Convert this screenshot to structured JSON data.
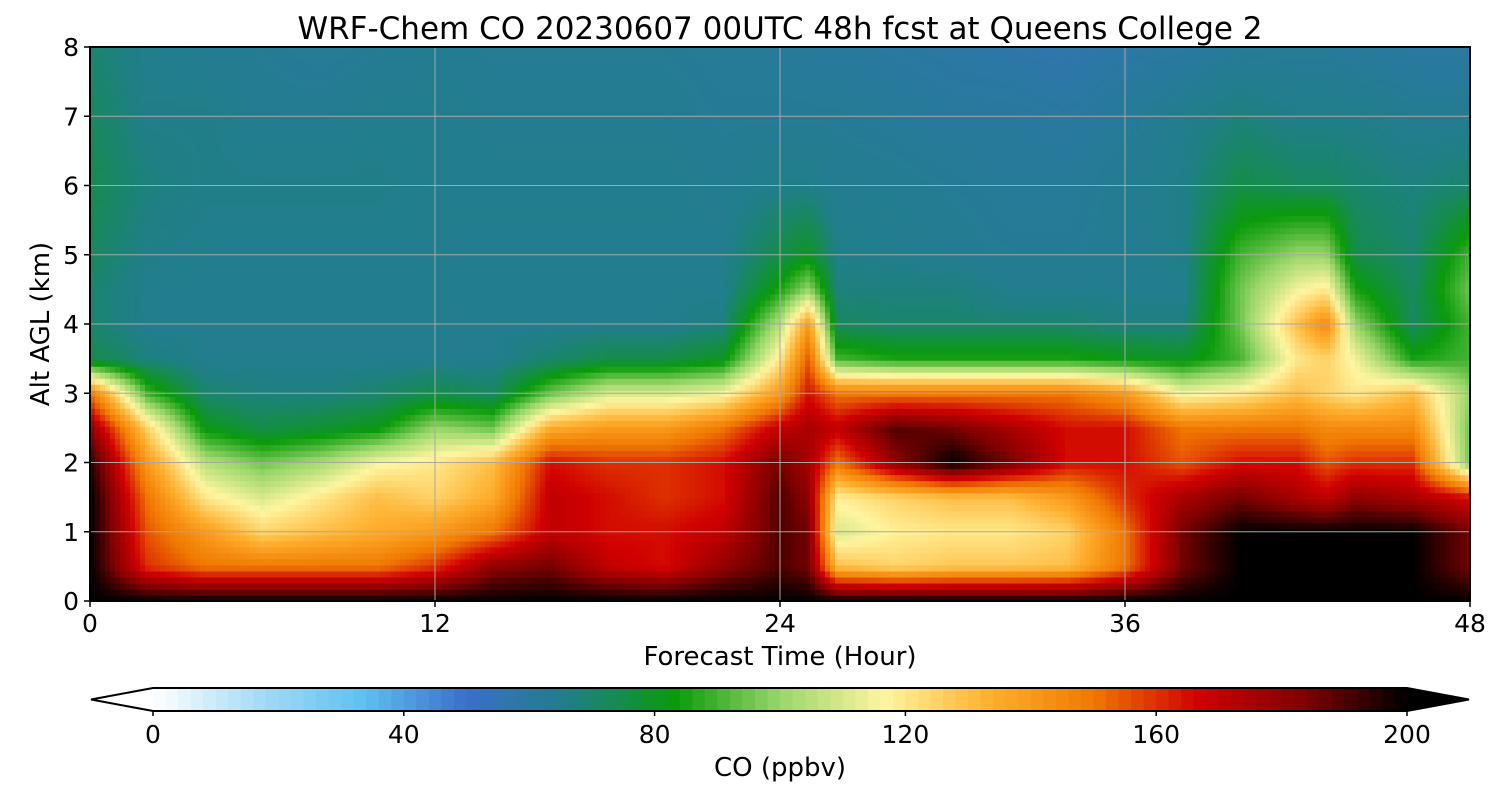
{
  "chart_data": {
    "type": "heatmap",
    "title": "WRF-Chem CO  20230607 00UTC 48h fcst at Queens College 2",
    "xlabel": "Forecast Time (Hour)",
    "ylabel": "Alt AGL (km)",
    "xlim": [
      0,
      48
    ],
    "ylim": [
      0,
      8
    ],
    "x_ticks": [
      "0",
      "12",
      "24",
      "36",
      "48"
    ],
    "y_ticks": [
      "0",
      "1",
      "2",
      "3",
      "4",
      "5",
      "6",
      "7",
      "8"
    ],
    "grid": true,
    "colorbar": {
      "label": "CO  (ppbv)",
      "range": [
        0,
        200
      ],
      "ticks": [
        "0",
        "40",
        "80",
        "120",
        "160",
        "200"
      ],
      "extend": "both",
      "colors": [
        "#ffffff",
        "#a6dcf7",
        "#5fc1f1",
        "#3a6fc9",
        "#1f7f86",
        "#0a9b0a",
        "#9ad66a",
        "#fff5a0",
        "#ffb030",
        "#f07800",
        "#d00000",
        "#800000",
        "#000000"
      ]
    },
    "x": [
      0,
      2,
      4,
      6,
      8,
      10,
      12,
      14,
      16,
      18,
      20,
      22,
      24,
      25,
      26,
      28,
      30,
      32,
      34,
      36,
      38,
      40,
      42,
      43,
      44,
      46,
      48
    ],
    "y": [
      0,
      0.5,
      1,
      1.5,
      2,
      2.5,
      3,
      3.5,
      4,
      4.5,
      5,
      6,
      7,
      8
    ],
    "values": [
      [
        200,
        200,
        200,
        200,
        200,
        200,
        200,
        200,
        200,
        200,
        200,
        200,
        200,
        200,
        200,
        200,
        200,
        200,
        200,
        200,
        200,
        200,
        200,
        200,
        200,
        200,
        200
      ],
      [
        200,
        160,
        150,
        150,
        150,
        150,
        160,
        180,
        185,
        170,
        165,
        180,
        190,
        185,
        130,
        125,
        128,
        128,
        130,
        150,
        185,
        200,
        200,
        200,
        200,
        200,
        185
      ],
      [
        200,
        155,
        140,
        125,
        130,
        135,
        140,
        150,
        170,
        165,
        165,
        170,
        190,
        185,
        110,
        118,
        120,
        120,
        125,
        150,
        185,
        200,
        200,
        200,
        200,
        200,
        185
      ],
      [
        200,
        150,
        120,
        110,
        120,
        130,
        125,
        135,
        170,
        165,
        160,
        165,
        190,
        180,
        118,
        125,
        130,
        130,
        140,
        160,
        175,
        185,
        175,
        170,
        180,
        175,
        165
      ],
      [
        195,
        140,
        105,
        95,
        102,
        115,
        120,
        130,
        165,
        160,
        160,
        165,
        185,
        175,
        150,
        180,
        200,
        185,
        165,
        165,
        155,
        165,
        165,
        155,
        160,
        160,
        95
      ],
      [
        180,
        125,
        82,
        75,
        78,
        82,
        100,
        95,
        135,
        140,
        140,
        150,
        170,
        175,
        170,
        190,
        185,
        175,
        165,
        165,
        150,
        150,
        150,
        145,
        145,
        145,
        95
      ],
      [
        150,
        90,
        70,
        68,
        68,
        70,
        75,
        72,
        95,
        110,
        110,
        115,
        140,
        165,
        150,
        150,
        150,
        150,
        150,
        140,
        115,
        120,
        130,
        125,
        120,
        130,
        100
      ],
      [
        75,
        68,
        65,
        65,
        65,
        65,
        65,
        65,
        70,
        75,
        75,
        80,
        120,
        155,
        90,
        85,
        85,
        85,
        85,
        82,
        80,
        90,
        120,
        125,
        115,
        85,
        90
      ],
      [
        70,
        65,
        65,
        65,
        65,
        65,
        65,
        65,
        65,
        65,
        65,
        68,
        105,
        140,
        72,
        70,
        70,
        70,
        70,
        68,
        68,
        95,
        130,
        145,
        100,
        72,
        90
      ],
      [
        70,
        65,
        65,
        65,
        65,
        65,
        65,
        65,
        65,
        65,
        65,
        65,
        85,
        100,
        68,
        68,
        68,
        65,
        65,
        65,
        65,
        95,
        115,
        120,
        85,
        72,
        95
      ],
      [
        72,
        66,
        65,
        65,
        65,
        65,
        65,
        65,
        65,
        65,
        65,
        65,
        75,
        80,
        66,
        65,
        64,
        63,
        63,
        64,
        66,
        90,
        100,
        100,
        75,
        70,
        90
      ],
      [
        74,
        68,
        66,
        66,
        66,
        66,
        65,
        65,
        65,
        65,
        65,
        64,
        66,
        66,
        64,
        64,
        63,
        62,
        62,
        64,
        66,
        75,
        72,
        72,
        70,
        68,
        70
      ],
      [
        72,
        66,
        66,
        64,
        64,
        65,
        65,
        64,
        64,
        64,
        64,
        63,
        63,
        63,
        63,
        62,
        61,
        61,
        60,
        62,
        65,
        68,
        66,
        66,
        66,
        64,
        64
      ],
      [
        70,
        65,
        64,
        63,
        62,
        63,
        64,
        63,
        63,
        63,
        63,
        62,
        62,
        61,
        61,
        60,
        59,
        58,
        57,
        59,
        60,
        62,
        62,
        62,
        61,
        60,
        60
      ]
    ]
  }
}
